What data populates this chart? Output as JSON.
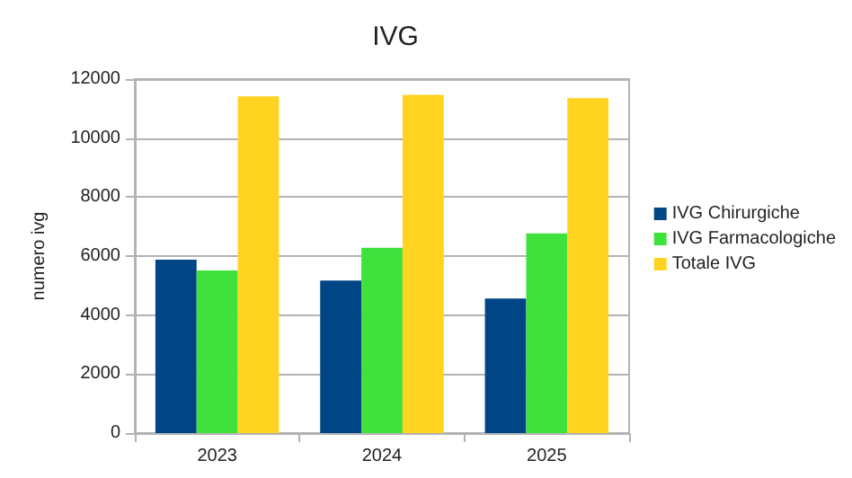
{
  "chart_data": {
    "type": "bar",
    "title": "IVG",
    "ylabel": "numero ivg",
    "categories": [
      "2023",
      "2024",
      "2025"
    ],
    "series": [
      {
        "name": "IVG Chirurgiche",
        "color": "#004586",
        "values": [
          5880,
          5170,
          4560
        ]
      },
      {
        "name": "IVG Farmacologiche",
        "color": "#3fe23c",
        "values": [
          5510,
          6280,
          6770
        ]
      },
      {
        "name": "Totale IVG",
        "color": "#ffd320",
        "values": [
          11410,
          11470,
          11350
        ]
      }
    ],
    "ylim": [
      0,
      12000
    ],
    "yticks": [
      0,
      2000,
      4000,
      6000,
      8000,
      10000,
      12000
    ],
    "grid": "y",
    "legend": "right"
  }
}
